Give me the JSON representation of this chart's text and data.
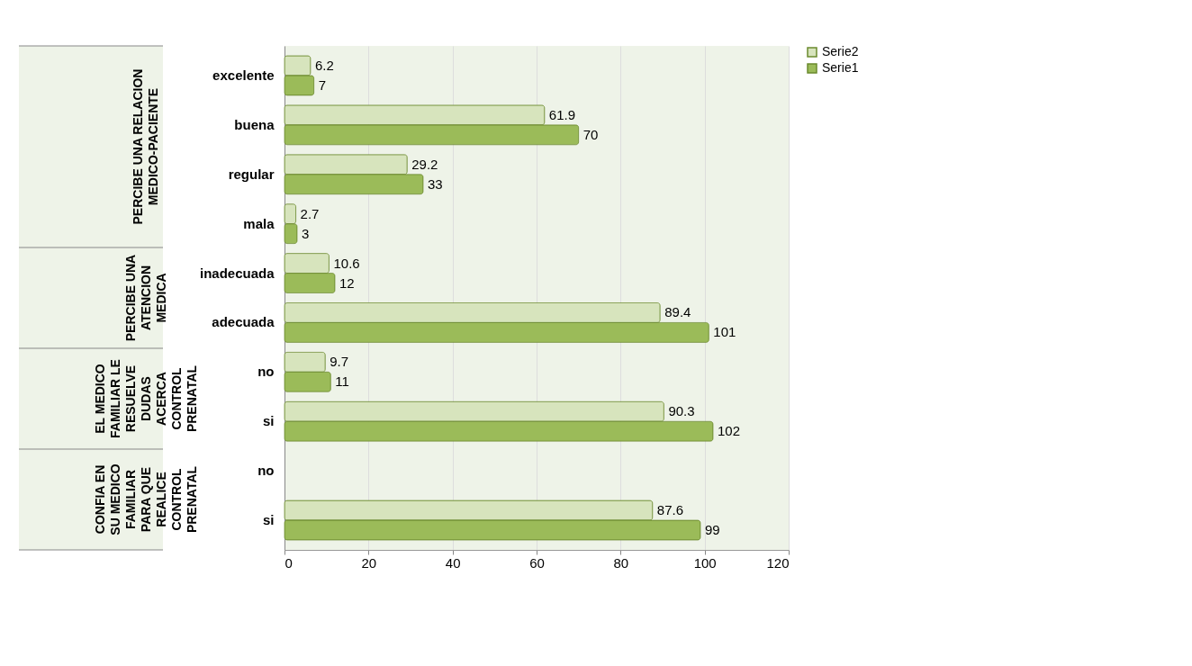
{
  "chart_data": {
    "type": "bar",
    "orientation": "horizontal",
    "categories": [
      "excelente",
      "buena",
      "regular",
      "mala",
      "inadecuada",
      "adecuada",
      "no",
      "si",
      "no",
      "si"
    ],
    "series": [
      {
        "name": "Serie2",
        "color": "#d7e4bd",
        "values": [
          6.2,
          61.9,
          29.2,
          2.7,
          10.6,
          89.4,
          9.7,
          90.3,
          null,
          87.6
        ]
      },
      {
        "name": "Serie1",
        "color": "#9bbb59",
        "values": [
          7,
          70,
          33,
          3,
          12,
          101,
          11,
          102,
          null,
          99
        ]
      }
    ],
    "annotations": [
      "PERCIBE UNA RELACION MEDICO-PACIENTE",
      "PERCIBE UNA ATENCION MEDICA",
      "EL MEDICO FAMILIAR LE RESUELVE DUDAS ACERCA CONTROL PRENATAL",
      "CONFIA EN SU MEDICO FAMILIAR PARA QUE REALICE CONTROL PRENATAL"
    ],
    "xlim": [
      0,
      120
    ],
    "xticks": [
      0,
      20,
      40,
      60,
      80,
      100,
      120
    ],
    "grid": "x",
    "legend": "right",
    "data_labels": true
  }
}
